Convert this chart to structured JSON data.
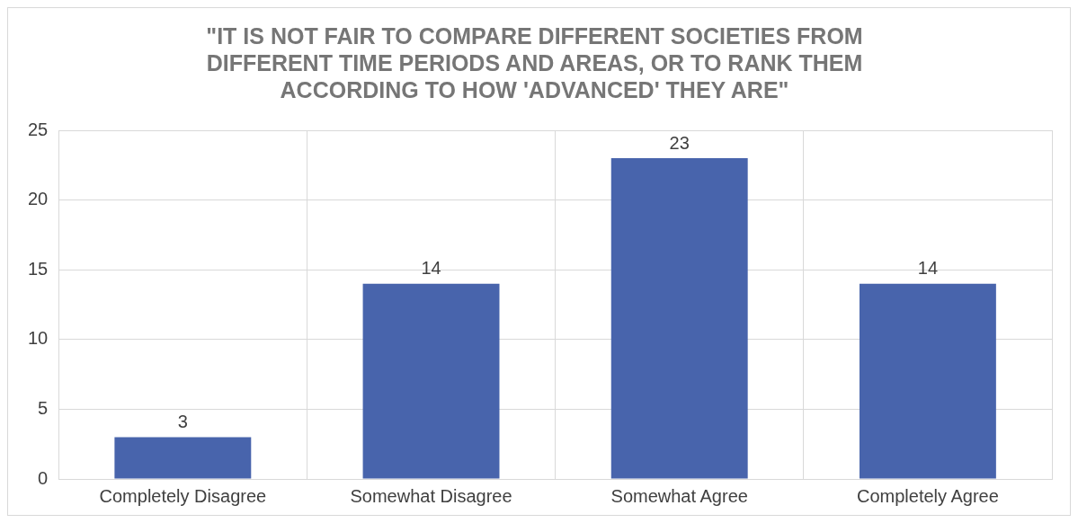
{
  "chart_data": {
    "type": "bar",
    "title": "\"IT IS NOT FAIR TO COMPARE DIFFERENT SOCIETIES FROM DIFFERENT TIME PERIODS AND AREAS, OR TO RANK THEM ACCORDING TO HOW 'ADVANCED' THEY ARE\"",
    "categories": [
      "Completely Disagree",
      "Somewhat Disagree",
      "Somewhat Agree",
      "Completely Agree"
    ],
    "values": [
      3,
      14,
      23,
      14
    ],
    "color": "#4864ac",
    "ylim": [
      0,
      25
    ],
    "yticks": [
      0,
      5,
      10,
      15,
      20,
      25
    ],
    "grid": true,
    "data_labels": true
  }
}
